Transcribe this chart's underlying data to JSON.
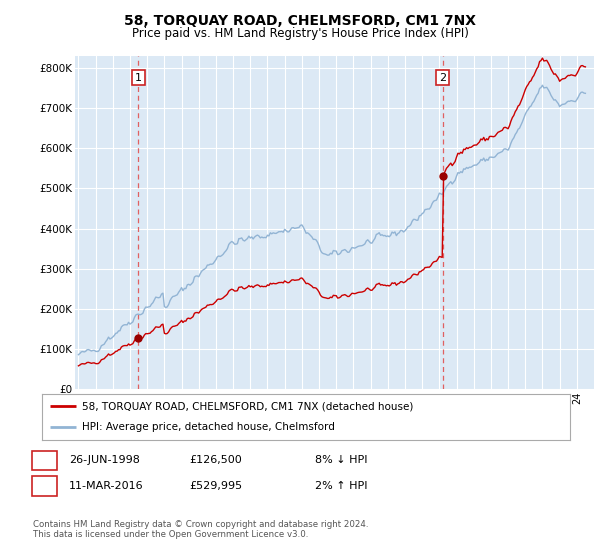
{
  "title": "58, TORQUAY ROAD, CHELMSFORD, CM1 7NX",
  "subtitle": "Price paid vs. HM Land Registry's House Price Index (HPI)",
  "background_color": "#ffffff",
  "plot_bg_color": "#dce9f5",
  "grid_color": "#ffffff",
  "sale1_date": 1998.49,
  "sale1_price": 126500,
  "sale2_date": 2016.19,
  "sale2_price": 529995,
  "legend_line1": "58, TORQUAY ROAD, CHELMSFORD, CM1 7NX (detached house)",
  "legend_line2": "HPI: Average price, detached house, Chelmsford",
  "footnote": "Contains HM Land Registry data © Crown copyright and database right 2024.\nThis data is licensed under the Open Government Licence v3.0.",
  "ylim": [
    0,
    830000
  ],
  "xlim_start": 1994.8,
  "xlim_end": 2025.0,
  "red_color": "#cc0000",
  "blue_color": "#92b4d4",
  "dashed_red": "#e06060",
  "marker_color": "#990000",
  "title_fontsize": 10,
  "subtitle_fontsize": 8.5
}
